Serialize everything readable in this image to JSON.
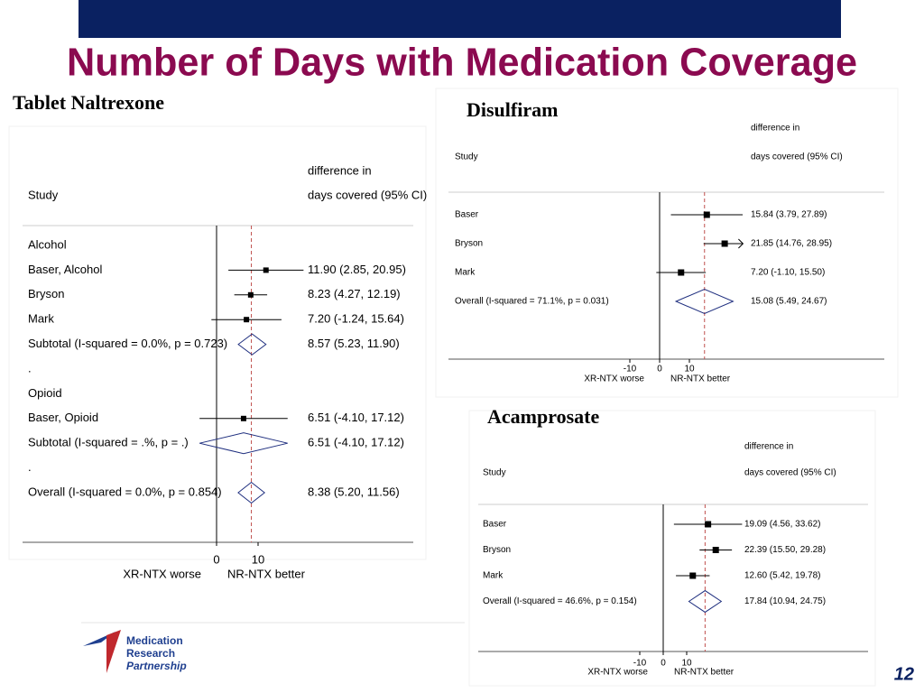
{
  "title": "Number of Days with Medication Coverage",
  "page_number": "12",
  "logo": [
    "Medication",
    "Research",
    "Partnership"
  ],
  "chart_data": [
    {
      "type": "forest",
      "title": "Tablet Naltrexone",
      "column_header": [
        "difference in",
        "days covered (95% CI)"
      ],
      "study_header": "Study",
      "rows": [
        {
          "label": "Alcohol"
        },
        {
          "label": "Baser, Alcohol",
          "shape": "box",
          "estimate": 11.9,
          "lower": 2.85,
          "upper": 20.95,
          "ci_label": "11.90 (2.85, 20.95)"
        },
        {
          "label": "Bryson",
          "shape": "box",
          "estimate": 8.23,
          "lower": 4.27,
          "upper": 12.19,
          "ci_label": "8.23 (4.27, 12.19)"
        },
        {
          "label": "Mark",
          "shape": "box",
          "estimate": 7.2,
          "lower": -1.24,
          "upper": 15.64,
          "ci_label": "7.20 (-1.24, 15.64)"
        },
        {
          "label": "Subtotal  (I-squared = 0.0%, p = 0.723)",
          "shape": "diamond",
          "estimate": 8.57,
          "lower": 5.23,
          "upper": 11.9,
          "ci_label": "8.57 (5.23, 11.90)"
        },
        {
          "label": "."
        },
        {
          "label": "Opioid"
        },
        {
          "label": "Baser, Opioid",
          "shape": "box",
          "estimate": 6.51,
          "lower": -4.1,
          "upper": 17.12,
          "ci_label": "6.51 (-4.10, 17.12)"
        },
        {
          "label": "Subtotal  (I-squared = .%, p = .)",
          "shape": "diamond",
          "estimate": 6.51,
          "lower": -4.1,
          "upper": 17.12,
          "ci_label": "6.51 (-4.10, 17.12)"
        },
        {
          "label": "."
        },
        {
          "label": "Overall  (I-squared = 0.0%, p = 0.854)",
          "shape": "diamond",
          "estimate": 8.38,
          "lower": 5.2,
          "upper": 11.56,
          "ci_label": "8.38 (5.20, 11.56)"
        }
      ],
      "xlim": [
        -5,
        21
      ],
      "xticks": [
        0,
        10
      ],
      "x_labels": [
        "XR-NTX worse",
        "NR-NTX better"
      ]
    },
    {
      "type": "forest",
      "title": "Disulfiram",
      "column_header": [
        "difference in",
        "days covered (95% CI)"
      ],
      "study_header": "Study",
      "rows": [
        {
          "label": "Baser",
          "shape": "box",
          "estimate": 15.84,
          "lower": 3.79,
          "upper": 27.89,
          "ci_label": "15.84 (3.79, 27.89)"
        },
        {
          "label": "Bryson",
          "shape": "box",
          "estimate": 21.85,
          "lower": 14.76,
          "upper": 28.95,
          "ci_label": "21.85 (14.76, 28.95)"
        },
        {
          "label": "Mark",
          "shape": "box",
          "estimate": 7.2,
          "lower": -1.1,
          "upper": 15.5,
          "ci_label": "7.20 (-1.10, 15.50)"
        },
        {
          "label": "Overall  (I-squared = 71.1%, p = 0.031)",
          "shape": "diamond",
          "estimate": 15.08,
          "lower": 5.49,
          "upper": 24.67,
          "ci_label": "15.08 (5.49, 24.67)"
        }
      ],
      "xlim": [
        -10,
        28
      ],
      "xticks": [
        -10,
        0,
        10
      ],
      "x_labels": [
        "XR-NTX worse",
        "NR-NTX better"
      ]
    },
    {
      "type": "forest",
      "title": "Acamprosate",
      "column_header": [
        "difference in",
        "days covered (95% CI)"
      ],
      "study_header": "Study",
      "rows": [
        {
          "label": "Baser",
          "shape": "box",
          "estimate": 19.09,
          "lower": 4.56,
          "upper": 33.62,
          "ci_label": "19.09 (4.56, 33.62)"
        },
        {
          "label": "Bryson",
          "shape": "box",
          "estimate": 22.39,
          "lower": 15.5,
          "upper": 29.28,
          "ci_label": "22.39 (15.50, 29.28)"
        },
        {
          "label": "Mark",
          "shape": "box",
          "estimate": 12.6,
          "lower": 5.42,
          "upper": 19.78,
          "ci_label": "12.60 (5.42, 19.78)"
        },
        {
          "label": "Overall  (I-squared = 46.6%, p = 0.154)",
          "shape": "diamond",
          "estimate": 17.84,
          "lower": 10.94,
          "upper": 24.75,
          "ci_label": "17.84 (10.94, 24.75)"
        }
      ],
      "xlim": [
        -10,
        34
      ],
      "xticks": [
        -10,
        0,
        10
      ],
      "x_labels": [
        "XR-NTX worse",
        "NR-NTX better"
      ]
    }
  ]
}
